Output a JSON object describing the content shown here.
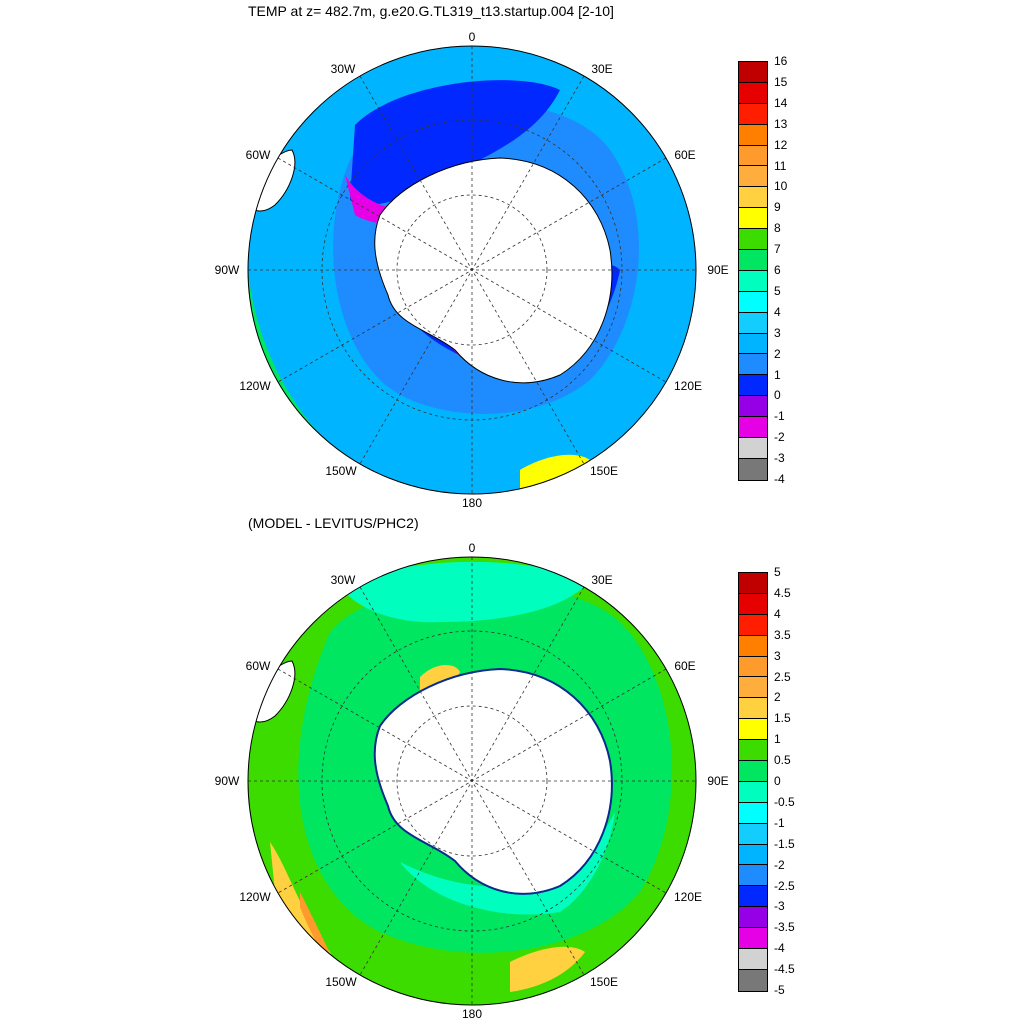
{
  "panels": [
    {
      "id": "top",
      "title": "TEMP at z= 482.7m, g.e20.G.TL319_t13.startup.004 [2-10]",
      "lon_labels": [
        "0",
        "30E",
        "60E",
        "90E",
        "120E",
        "150E",
        "180",
        "150W",
        "120W",
        "90W",
        "60W",
        "30W"
      ],
      "colorbar": {
        "labels": [
          "16",
          "15",
          "14",
          "13",
          "12",
          "11",
          "10",
          "9",
          "8",
          "7",
          "6",
          "5",
          "4",
          "3",
          "2",
          "1",
          "0",
          "-1",
          "-2",
          "-3",
          "-4"
        ],
        "colors": [
          "#c00000",
          "#e60000",
          "#ff1e00",
          "#ff8000",
          "#ff9a2c",
          "#ffad3c",
          "#ffd040",
          "#ffff00",
          "#3cdc00",
          "#00e660",
          "#00ffbe",
          "#00ffff",
          "#14cdff",
          "#00b4ff",
          "#1e8cff",
          "#0028ff",
          "#9600e6",
          "#e600e6",
          "#d2d2d2",
          "#787878"
        ]
      },
      "map": {
        "ocean": "#00b4ff",
        "shelf": "#0028ff",
        "low": "#e600e6",
        "north": "#3cdc00",
        "warm": "#ffff00",
        "mid": "#00e660",
        "inner": "#1e8cff"
      }
    },
    {
      "id": "bottom",
      "title": "(MODEL - LEVITUS/PHC2)",
      "lon_labels": [
        "0",
        "30E",
        "60E",
        "90E",
        "120E",
        "150E",
        "180",
        "150W",
        "120W",
        "90W",
        "60W",
        "30W"
      ],
      "colorbar": {
        "labels": [
          "5",
          "4.5",
          "4",
          "3.5",
          "3",
          "2.5",
          "2",
          "1.5",
          "1",
          "0.5",
          "0",
          "-0.5",
          "-1",
          "-1.5",
          "-2",
          "-2.5",
          "-3",
          "-3.5",
          "-4",
          "-4.5",
          "-5"
        ],
        "colors": [
          "#c00000",
          "#e60000",
          "#ff1e00",
          "#ff8000",
          "#ff9a2c",
          "#ffad3c",
          "#ffd040",
          "#ffff00",
          "#3cdc00",
          "#00e660",
          "#00ffbe",
          "#00ffff",
          "#14cdff",
          "#00b4ff",
          "#1e8cff",
          "#0028ff",
          "#9600e6",
          "#e600e6",
          "#d2d2d2",
          "#787878"
        ]
      },
      "map": {
        "ocean": "#3cdc00",
        "shelf": "#0028ff",
        "low": "#00ffbe",
        "north": "#ffd040",
        "warm": "#ff9a2c",
        "mid": "#00e660",
        "inner": "#00ffbe"
      }
    }
  ]
}
